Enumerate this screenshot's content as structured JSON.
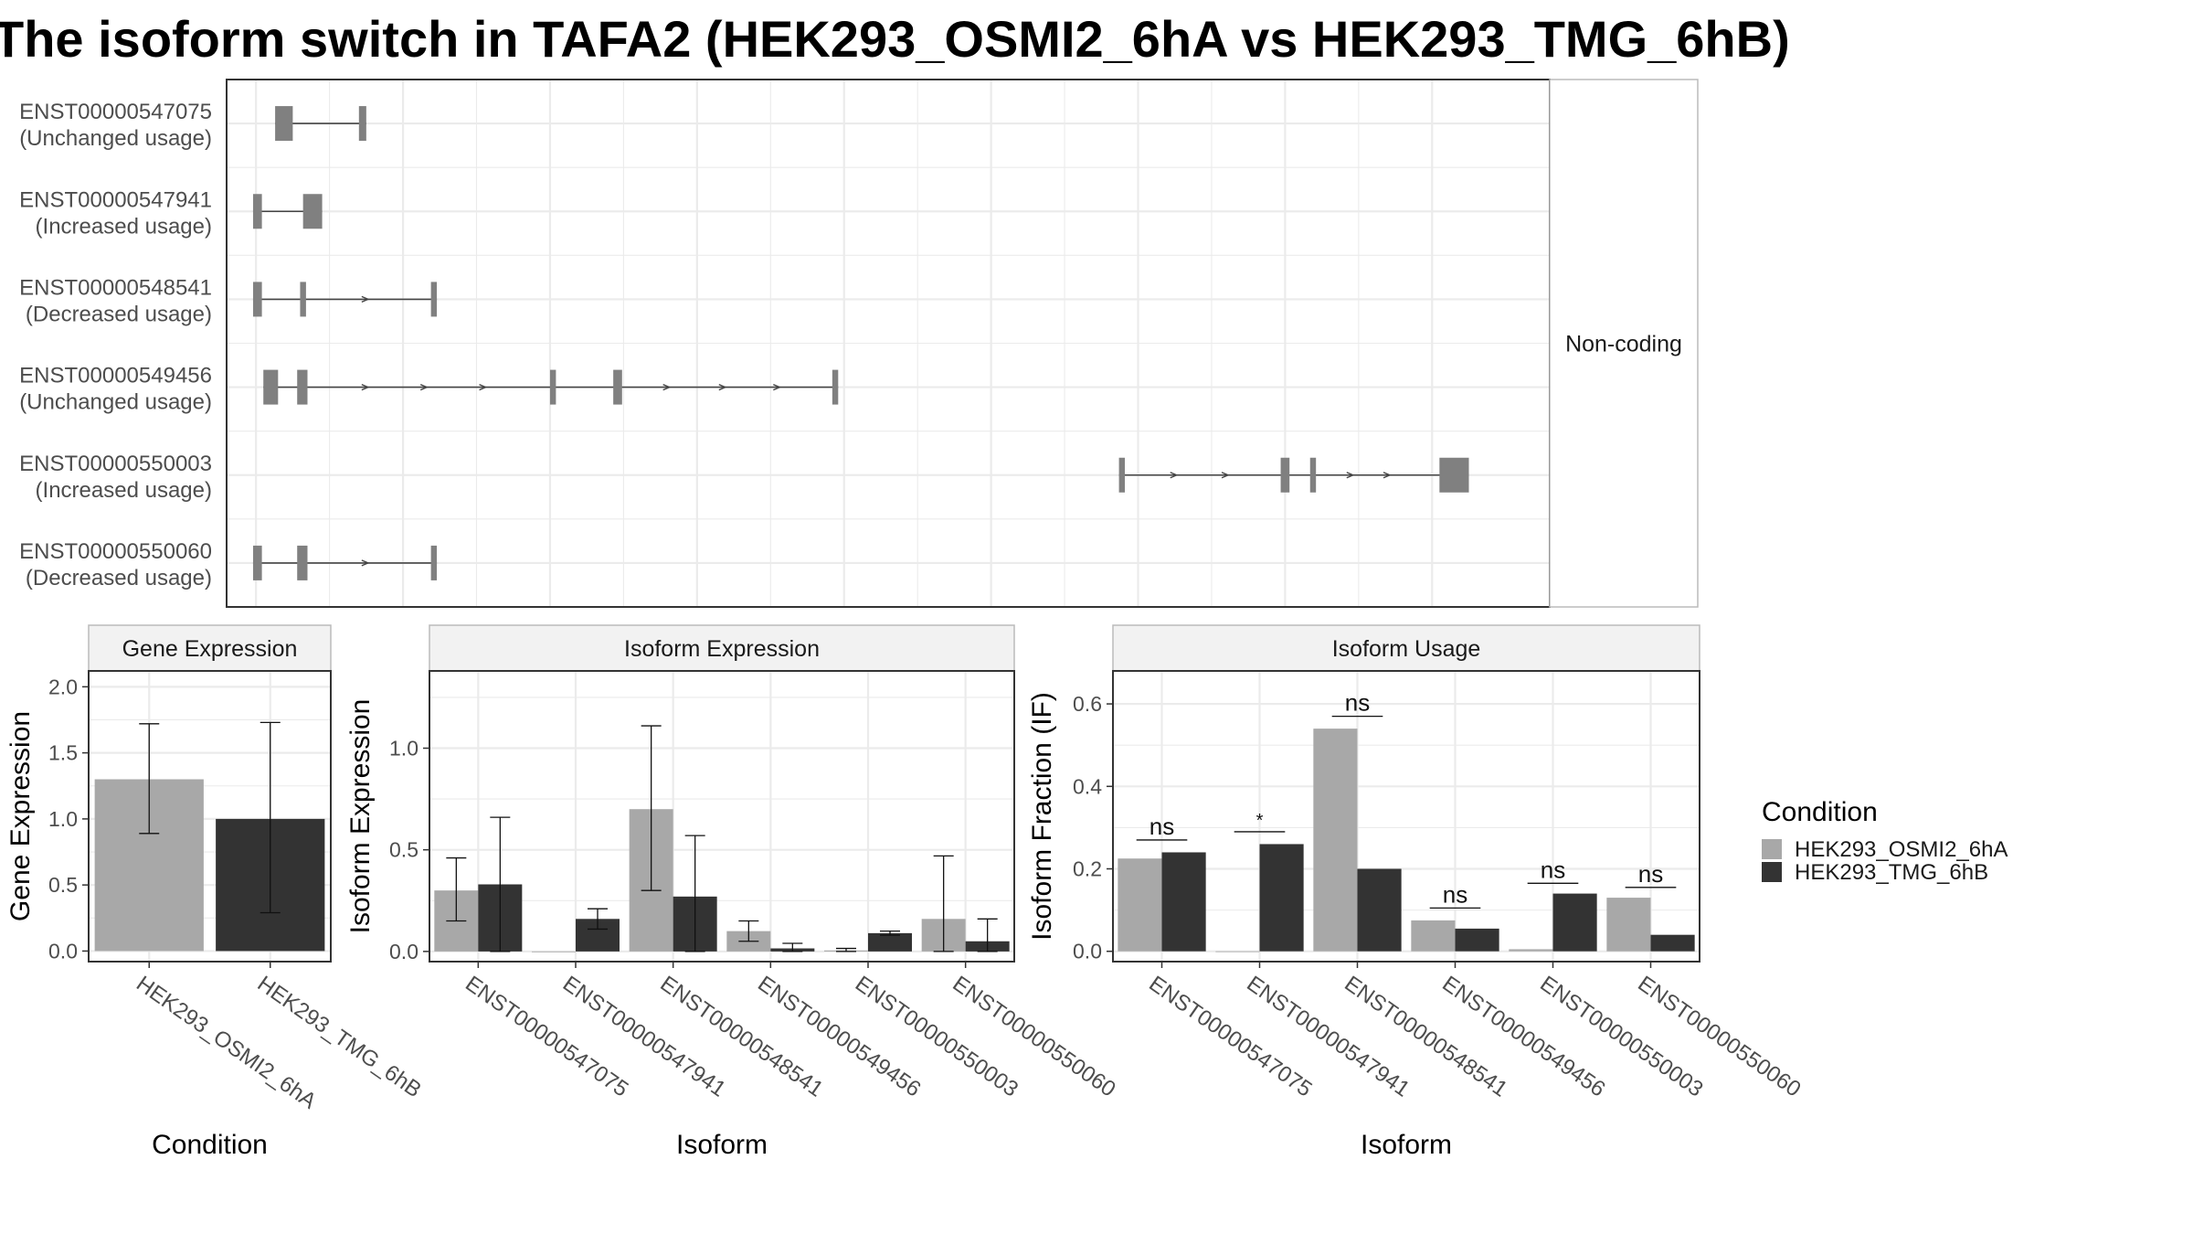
{
  "title": "The isoform switch in TAFA2 (HEK293_OSMI2_6hA vs HEK293_TMG_6hB)",
  "colors": {
    "cond_a": "#a8a8a8",
    "cond_b": "#333333",
    "exon": "#808080",
    "grid": "#ebebeb",
    "strip": "#f2f2f2",
    "frame": "#333333"
  },
  "chart_data": [
    {
      "type": "other",
      "name": "transcript-structure",
      "facet_label": "Non-coding",
      "transcripts": [
        {
          "id": "ENST00000547075",
          "usage": "(Unchanged usage)",
          "exons": [
            [
              0.13,
              0.25
            ],
            [
              0.7,
              0.75
            ]
          ],
          "arrows": []
        },
        {
          "id": "ENST00000547941",
          "usage": "(Increased usage)",
          "exons": [
            [
              -0.02,
              0.04
            ],
            [
              0.32,
              0.45
            ]
          ],
          "arrows": []
        },
        {
          "id": "ENST00000548541",
          "usage": "(Decreased usage)",
          "exons": [
            [
              -0.02,
              0.04
            ],
            [
              0.3,
              0.34
            ],
            [
              1.19,
              1.23
            ]
          ],
          "arrows": [
            0.75
          ]
        },
        {
          "id": "ENST00000549456",
          "usage": "(Unchanged usage)",
          "exons": [
            [
              0.05,
              0.15
            ],
            [
              0.28,
              0.35
            ],
            [
              2.0,
              2.04
            ],
            [
              2.43,
              2.49
            ],
            [
              3.92,
              3.96
            ]
          ],
          "arrows": [
            0.75,
            1.15,
            1.55,
            2.8,
            3.18,
            3.55
          ]
        },
        {
          "id": "ENST00000550003",
          "usage": "(Increased usage)",
          "exons": [
            [
              5.87,
              5.91
            ],
            [
              6.97,
              7.03
            ],
            [
              7.17,
              7.21
            ],
            [
              8.05,
              8.25
            ]
          ],
          "arrows": [
            6.25,
            6.6,
            7.45,
            7.7
          ]
        },
        {
          "id": "ENST00000550060",
          "usage": "(Decreased usage)",
          "exons": [
            [
              -0.02,
              0.04
            ],
            [
              0.28,
              0.35
            ],
            [
              1.19,
              1.23
            ]
          ],
          "arrows": [
            0.75
          ]
        }
      ]
    },
    {
      "type": "bar",
      "name": "gene-expression",
      "title": "Gene Expression",
      "xlabel": "Condition",
      "ylabel": "Gene Expression",
      "ylim": [
        -0.08,
        2.12
      ],
      "yticks": [
        0.0,
        0.5,
        1.0,
        1.5,
        2.0
      ],
      "ytick_labels": [
        "0.0",
        "0.5",
        "1.0",
        "1.5",
        "2.0"
      ],
      "categories": [
        "HEK293_OSMI2_6hA",
        "HEK293_TMG_6hB"
      ],
      "values": [
        1.3,
        1.0
      ],
      "err_low": [
        0.89,
        0.29
      ],
      "err_high": [
        1.72,
        1.73
      ]
    },
    {
      "type": "bar",
      "name": "isoform-expression",
      "title": "Isoform Expression",
      "xlabel": "Isoform",
      "ylabel": "Isoform Expression",
      "ylim": [
        -0.05,
        1.38
      ],
      "yticks": [
        0.0,
        0.5,
        1.0
      ],
      "ytick_labels": [
        "0.0",
        "0.5",
        "1.0"
      ],
      "categories": [
        "ENST00000547075",
        "ENST00000547941",
        "ENST00000548541",
        "ENST00000549456",
        "ENST00000550003",
        "ENST00000550060"
      ],
      "series": [
        {
          "name": "HEK293_OSMI2_6hA",
          "values": [
            0.3,
            0.0,
            0.7,
            0.1,
            0.005,
            0.16
          ],
          "err_low": [
            0.15,
            0.0,
            0.3,
            0.05,
            0.0,
            0.0
          ],
          "err_high": [
            0.46,
            0.0,
            1.11,
            0.15,
            0.015,
            0.47
          ]
        },
        {
          "name": "HEK293_TMG_6hB",
          "values": [
            0.33,
            0.16,
            0.27,
            0.015,
            0.09,
            0.05
          ],
          "err_low": [
            0.0,
            0.11,
            0.0,
            0.0,
            0.08,
            0.0
          ],
          "err_high": [
            0.66,
            0.21,
            0.57,
            0.04,
            0.1,
            0.16
          ]
        }
      ]
    },
    {
      "type": "bar",
      "name": "isoform-usage",
      "title": "Isoform Usage",
      "xlabel": "Isoform",
      "ylabel": "Isoform Fraction (IF)",
      "ylim": [
        -0.025,
        0.68
      ],
      "yticks": [
        0.0,
        0.2,
        0.4,
        0.6
      ],
      "ytick_labels": [
        "0.0",
        "0.2",
        "0.4",
        "0.6"
      ],
      "categories": [
        "ENST00000547075",
        "ENST00000547941",
        "ENST00000548541",
        "ENST00000549456",
        "ENST00000550003",
        "ENST00000550060"
      ],
      "series": [
        {
          "name": "HEK293_OSMI2_6hA",
          "values": [
            0.225,
            0.0,
            0.54,
            0.075,
            0.005,
            0.13
          ]
        },
        {
          "name": "HEK293_TMG_6hB",
          "values": [
            0.24,
            0.26,
            0.2,
            0.055,
            0.14,
            0.04
          ]
        }
      ],
      "significance": [
        "ns",
        "*",
        "ns",
        "ns",
        "ns",
        "ns"
      ],
      "sig_y": [
        0.27,
        0.29,
        0.57,
        0.105,
        0.165,
        0.155
      ]
    }
  ],
  "legend": {
    "title": "Condition",
    "entries": [
      "HEK293_OSMI2_6hA",
      "HEK293_TMG_6hB"
    ]
  }
}
